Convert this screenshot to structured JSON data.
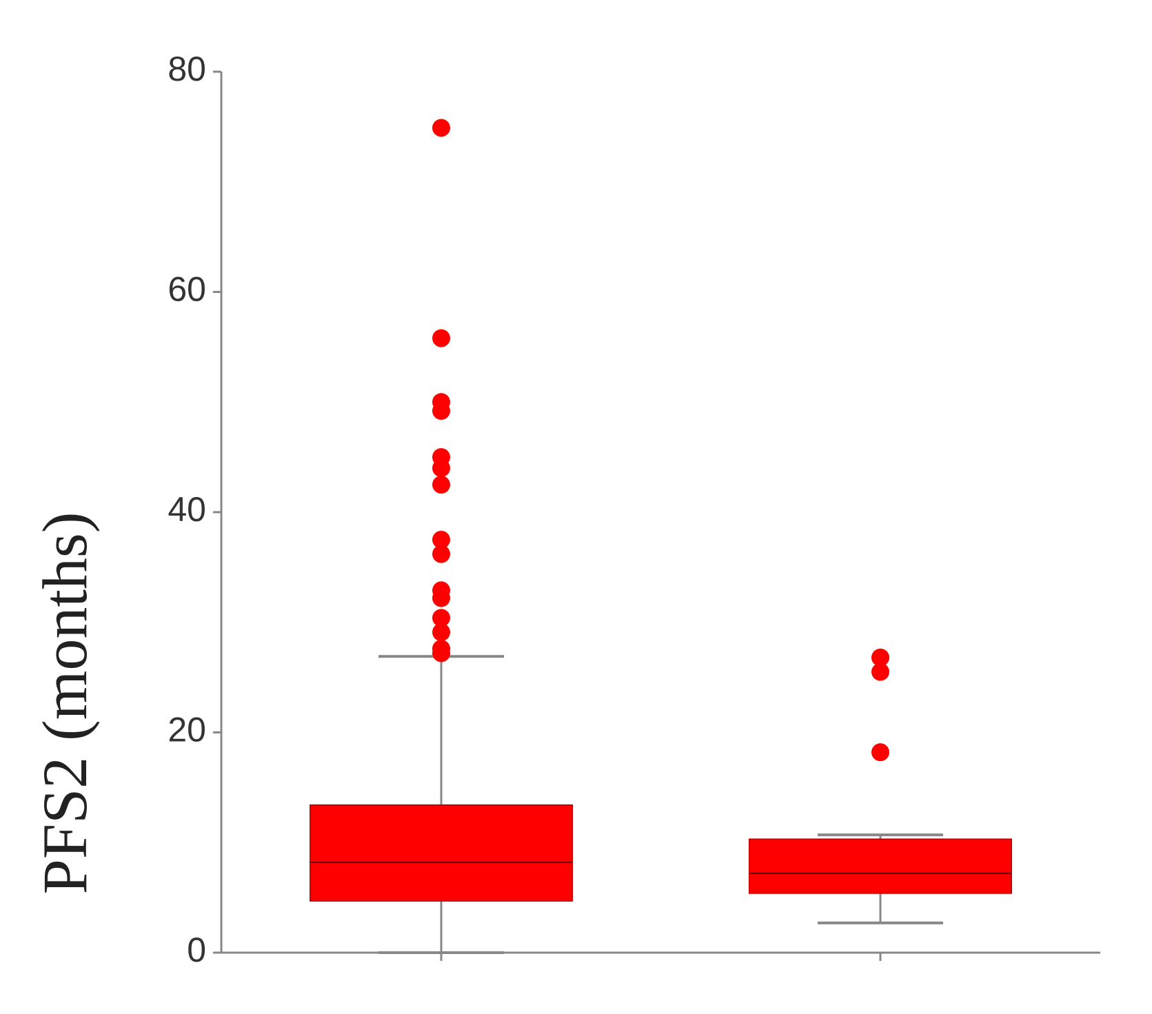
{
  "chart_data": {
    "type": "box",
    "y_label": "PFS2 (months)",
    "categories": [
      null,
      null
    ],
    "color": "#ff0000",
    "boxes": [
      {
        "whislo": 0,
        "q1": 4.7,
        "med": 8.2,
        "q3": 13.4,
        "whishi": 26.9,
        "fliers": [
          74.9,
          55.8,
          50,
          49.2,
          45,
          44,
          42.5,
          37.5,
          36.2,
          32.9,
          32.2,
          30.4,
          29.1,
          27.6,
          27.2
        ]
      },
      {
        "whislo": 2.7,
        "q1": 5.4,
        "med": 7.2,
        "q3": 10.3,
        "whishi": 10.7,
        "fliers": [
          26.8,
          25.5,
          18.2
        ]
      }
    ],
    "ylim": [
      0,
      80
    ],
    "yticks": [
      0,
      20,
      40,
      60,
      80
    ]
  }
}
